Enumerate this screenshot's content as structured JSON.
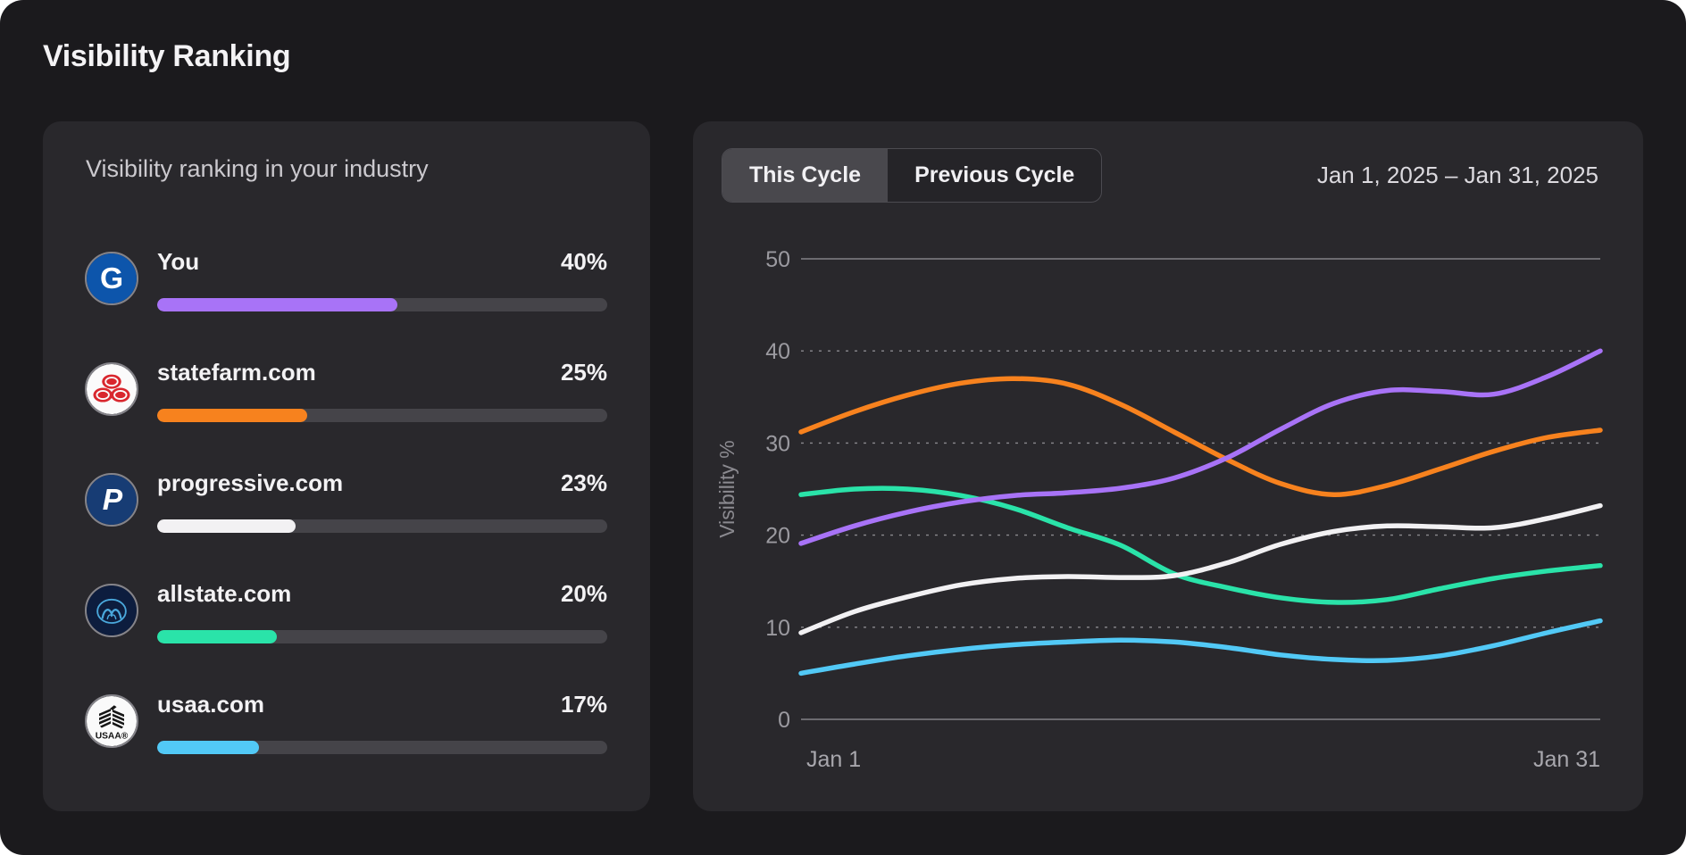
{
  "page": {
    "title": "Visibility Ranking"
  },
  "ranking_panel": {
    "subtitle": "Visibility ranking in your industry",
    "bar_scale_max": 75,
    "items": [
      {
        "name": "You",
        "value": 40,
        "value_label": "40%",
        "color": "#a873f7",
        "icon": "geico-logo-icon"
      },
      {
        "name": "statefarm.com",
        "value": 25,
        "value_label": "25%",
        "color": "#f7821e",
        "icon": "statefarm-logo-icon"
      },
      {
        "name": "progressive.com",
        "value": 23,
        "value_label": "23%",
        "color": "#f2f1f3",
        "icon": "progressive-logo-icon"
      },
      {
        "name": "allstate.com",
        "value": 20,
        "value_label": "20%",
        "color": "#2ae3a9",
        "icon": "allstate-logo-icon"
      },
      {
        "name": "usaa.com",
        "value": 17,
        "value_label": "17%",
        "color": "#52c9f6",
        "icon": "usaa-logo-icon"
      }
    ]
  },
  "chart_panel": {
    "tabs": [
      {
        "label": "This Cycle",
        "active": true
      },
      {
        "label": "Previous Cycle",
        "active": false
      }
    ],
    "date_range": "Jan 1, 2025 – Jan 31, 2025"
  },
  "chart_data": {
    "type": "line",
    "ylabel": "Visibility %",
    "ylim": [
      0,
      50
    ],
    "xlim_days": [
      0,
      30
    ],
    "yticks": [
      0,
      10,
      20,
      30,
      40,
      50
    ],
    "grid_dashed": [
      10,
      20,
      30,
      40
    ],
    "grid_solid": [
      0,
      50
    ],
    "x_tick_labels": [
      "Jan 1",
      "Jan 31"
    ],
    "legend": "none",
    "x_days": [
      0,
      2,
      4,
      6,
      8,
      10,
      12,
      14,
      16,
      18,
      20,
      22,
      24,
      26,
      28,
      30
    ],
    "series": [
      {
        "name": "usaa.com",
        "color": "#52c9f6",
        "values": [
          5.0,
          6.0,
          6.9,
          7.6,
          8.1,
          8.4,
          8.6,
          8.4,
          7.8,
          7.0,
          6.5,
          6.4,
          6.9,
          8.0,
          9.4,
          10.7
        ]
      },
      {
        "name": "allstate.com",
        "color": "#2ae3a9",
        "values": [
          24.4,
          25.0,
          25.0,
          24.3,
          22.9,
          20.8,
          18.9,
          15.8,
          14.3,
          13.2,
          12.7,
          13.0,
          14.2,
          15.3,
          16.1,
          16.7
        ]
      },
      {
        "name": "progressive.com",
        "color": "#f2f1f3",
        "values": [
          9.4,
          11.7,
          13.3,
          14.6,
          15.3,
          15.5,
          15.4,
          15.6,
          17.0,
          19.0,
          20.4,
          21.0,
          20.9,
          20.8,
          21.8,
          23.2
        ]
      },
      {
        "name": "statefarm.com",
        "color": "#f7821e",
        "values": [
          31.2,
          33.4,
          35.2,
          36.5,
          37.0,
          36.4,
          34.2,
          31.2,
          28.2,
          25.6,
          24.4,
          25.4,
          27.2,
          29.1,
          30.6,
          31.4
        ]
      },
      {
        "name": "You",
        "color": "#a873f7",
        "values": [
          19.1,
          21.0,
          22.5,
          23.6,
          24.3,
          24.6,
          25.1,
          26.2,
          28.4,
          31.5,
          34.3,
          35.7,
          35.6,
          35.3,
          37.2,
          40.0
        ]
      }
    ]
  }
}
